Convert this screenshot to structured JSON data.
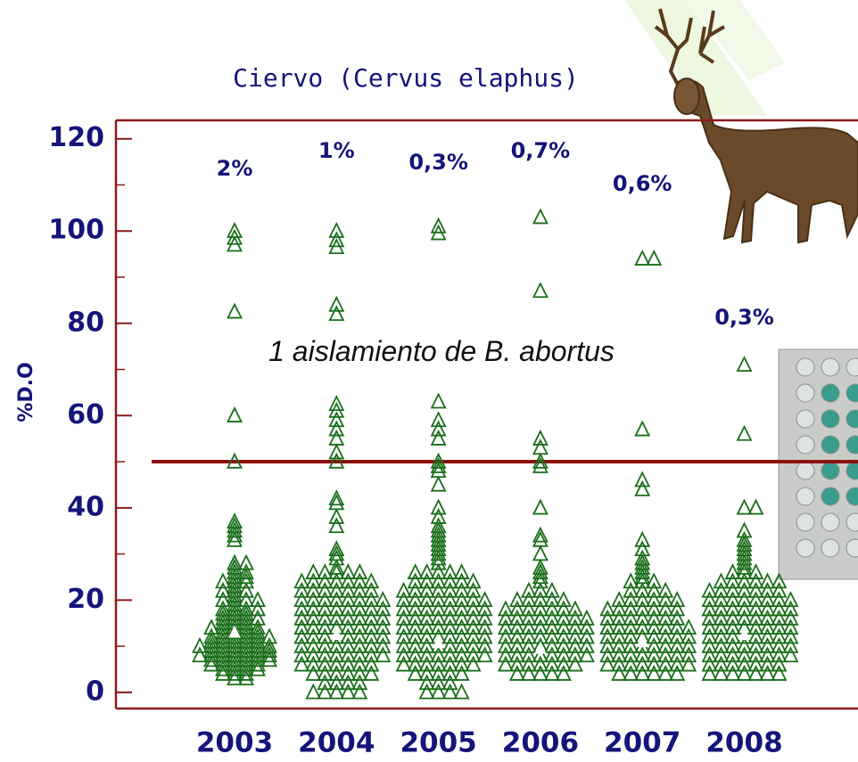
{
  "chart_data": {
    "type": "strip",
    "title": "Ciervo (Cervus elaphus)",
    "ylabel": "%D.O",
    "annotation": "1 aislamiento de B. abortus",
    "categories": [
      "2003",
      "2004",
      "2005",
      "2006",
      "2007",
      "2008"
    ],
    "percent_labels": [
      "2%",
      "1%",
      "0,3%",
      "0,7%",
      "0,6%",
      "0,3%"
    ],
    "color": "#1a6e1a",
    "mean_color": "#ffffff",
    "cutoff": 50,
    "cutoff_color": "#8b1010",
    "ylim": [
      -3.5,
      124
    ],
    "yticks": [
      0,
      20,
      40,
      60,
      80,
      100,
      120
    ],
    "yminor": [
      10,
      30,
      50,
      70,
      90,
      110
    ],
    "means": [
      13,
      12.5,
      10.7,
      9.5,
      11,
      12.5
    ],
    "values": [
      [
        100,
        98.5,
        97,
        82.5,
        60,
        50,
        37,
        36,
        35,
        34,
        33,
        28,
        28,
        27,
        26,
        26,
        25,
        25,
        24,
        24,
        24,
        23,
        22,
        22,
        22,
        21,
        20,
        20,
        20,
        20,
        19,
        18,
        18,
        18,
        18,
        17,
        17,
        17,
        16,
        16,
        16,
        16,
        15,
        15,
        15,
        14,
        14,
        14,
        14,
        14,
        13,
        13,
        13,
        13,
        12,
        12,
        12,
        12,
        12,
        12,
        11,
        11,
        11,
        11,
        11,
        10,
        10,
        10,
        10,
        10,
        10,
        10,
        9,
        9,
        9,
        9,
        9,
        9,
        8,
        8,
        8,
        8,
        8,
        8,
        8,
        7,
        7,
        7,
        7,
        7,
        7,
        6,
        6,
        6,
        6,
        6,
        5,
        5,
        5,
        5,
        4,
        4,
        4,
        3,
        3
      ],
      [
        100,
        98,
        96.5,
        84,
        82,
        62.5,
        61,
        59,
        57,
        55,
        52,
        50,
        42,
        41,
        38,
        36,
        31,
        30,
        29,
        27,
        26,
        26,
        26,
        26,
        26,
        24,
        24,
        24,
        24,
        24,
        24,
        24,
        22,
        22,
        22,
        22,
        22,
        22,
        22,
        20,
        20,
        20,
        20,
        20,
        20,
        20,
        20,
        18,
        18,
        18,
        18,
        18,
        18,
        18,
        18,
        16,
        16,
        16,
        16,
        16,
        16,
        16,
        16,
        14,
        14,
        14,
        14,
        14,
        14,
        14,
        14,
        12,
        12,
        12,
        12,
        12,
        12,
        12,
        12,
        10,
        10,
        10,
        10,
        10,
        10,
        10,
        10,
        8,
        8,
        8,
        8,
        8,
        8,
        8,
        8,
        6,
        6,
        6,
        6,
        6,
        6,
        6,
        4,
        4,
        4,
        4,
        4,
        4,
        2,
        2,
        2,
        2,
        0,
        0,
        0,
        0,
        0
      ],
      [
        101,
        99.5,
        63,
        59,
        57,
        55,
        50,
        49,
        48,
        45,
        40,
        38,
        36,
        35,
        34,
        33,
        32,
        31,
        30,
        29,
        28,
        26,
        26,
        26,
        26,
        26,
        24,
        24,
        24,
        24,
        24,
        24,
        22,
        22,
        22,
        22,
        22,
        22,
        22,
        20,
        20,
        20,
        20,
        20,
        20,
        20,
        20,
        18,
        18,
        18,
        18,
        18,
        18,
        18,
        18,
        16,
        16,
        16,
        16,
        16,
        16,
        16,
        16,
        14,
        14,
        14,
        14,
        14,
        14,
        14,
        14,
        12,
        12,
        12,
        12,
        12,
        12,
        12,
        12,
        10,
        10,
        10,
        10,
        10,
        10,
        10,
        10,
        8,
        8,
        8,
        8,
        8,
        8,
        8,
        8,
        6,
        6,
        6,
        6,
        6,
        6,
        6,
        4,
        4,
        4,
        4,
        4,
        2,
        2,
        2,
        0,
        0,
        0,
        0
      ],
      [
        103,
        87,
        55,
        53,
        50,
        49,
        40,
        34,
        33,
        30,
        27,
        26,
        25,
        24,
        22,
        22,
        22,
        20,
        20,
        20,
        20,
        20,
        18,
        18,
        18,
        18,
        18,
        18,
        18,
        16,
        16,
        16,
        16,
        16,
        16,
        16,
        16,
        14,
        14,
        14,
        14,
        14,
        14,
        14,
        14,
        12,
        12,
        12,
        12,
        12,
        12,
        12,
        12,
        10,
        10,
        10,
        10,
        10,
        10,
        10,
        10,
        8,
        8,
        8,
        8,
        8,
        8,
        8,
        8,
        6,
        6,
        6,
        6,
        6,
        6,
        6,
        4,
        4,
        4,
        4,
        4
      ],
      [
        94,
        94,
        57,
        46,
        44,
        33,
        31,
        29,
        28,
        27,
        26,
        25,
        24,
        24,
        24,
        22,
        22,
        22,
        22,
        20,
        20,
        20,
        20,
        20,
        20,
        18,
        18,
        18,
        18,
        18,
        18,
        18,
        16,
        16,
        16,
        16,
        16,
        16,
        16,
        14,
        14,
        14,
        14,
        14,
        14,
        14,
        14,
        12,
        12,
        12,
        12,
        12,
        12,
        12,
        12,
        10,
        10,
        10,
        10,
        10,
        10,
        10,
        10,
        8,
        8,
        8,
        8,
        8,
        8,
        8,
        8,
        6,
        6,
        6,
        6,
        6,
        6,
        6,
        6,
        4,
        4,
        4,
        4,
        4,
        4
      ],
      [
        71,
        56,
        40,
        40,
        35,
        33,
        32,
        31,
        30,
        29,
        28,
        27,
        26,
        26,
        26,
        24,
        24,
        24,
        24,
        24,
        24,
        22,
        22,
        22,
        22,
        22,
        22,
        22,
        20,
        20,
        20,
        20,
        20,
        20,
        20,
        20,
        18,
        18,
        18,
        18,
        18,
        18,
        18,
        18,
        16,
        16,
        16,
        16,
        16,
        16,
        16,
        16,
        14,
        14,
        14,
        14,
        14,
        14,
        14,
        14,
        12,
        12,
        12,
        12,
        12,
        12,
        12,
        12,
        10,
        10,
        10,
        10,
        10,
        10,
        10,
        10,
        8,
        8,
        8,
        8,
        8,
        8,
        8,
        8,
        6,
        6,
        6,
        6,
        6,
        6,
        6,
        4,
        4,
        4,
        4,
        4,
        4,
        4
      ]
    ]
  }
}
